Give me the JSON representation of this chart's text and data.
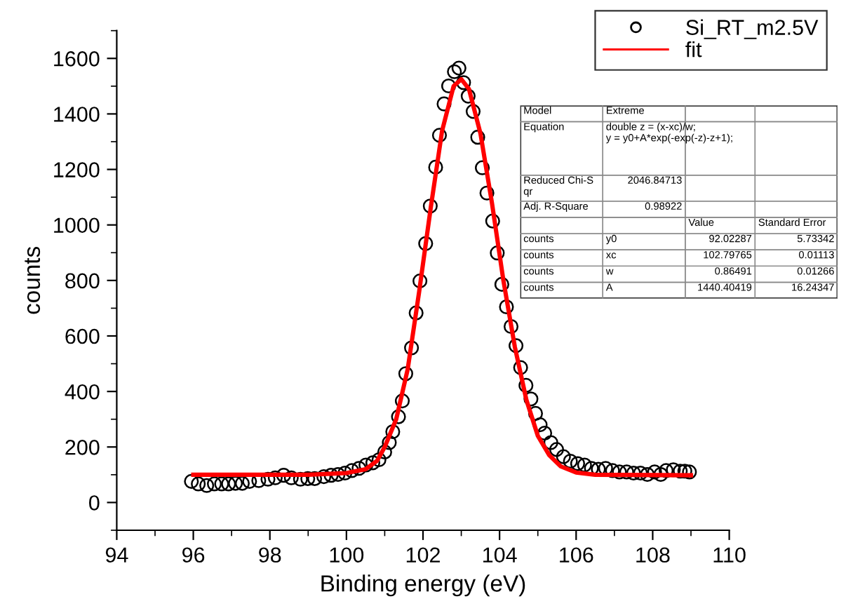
{
  "chart_data": {
    "type": "scatter",
    "xlabel": "Binding energy (eV)",
    "ylabel": "counts",
    "xlim": [
      94,
      110
    ],
    "xticks": [
      94,
      96,
      98,
      100,
      102,
      104,
      106,
      108,
      110
    ],
    "ylim": [
      -100,
      1700
    ],
    "yticks": [
      0,
      200,
      400,
      600,
      800,
      1000,
      1200,
      1400,
      1600
    ],
    "grid": false,
    "legend": "top right",
    "series": [
      {
        "name": "Si_RT_m2.5V",
        "marker": "circle",
        "color": "#000000",
        "x": [
          95.95,
          96.13,
          96.35,
          96.55,
          96.74,
          96.92,
          97.1,
          97.28,
          97.47,
          97.71,
          97.95,
          98.14,
          98.36,
          98.56,
          98.8,
          98.99,
          99.17,
          99.41,
          99.6,
          99.78,
          99.96,
          100.14,
          100.33,
          100.51,
          100.69,
          100.85,
          101.0,
          101.12,
          101.21,
          101.36,
          101.46,
          101.55,
          101.7,
          101.82,
          101.92,
          102.07,
          102.19,
          102.33,
          102.43,
          102.55,
          102.67,
          102.82,
          102.94,
          103.06,
          103.18,
          103.31,
          103.43,
          103.55,
          103.67,
          103.82,
          103.94,
          104.06,
          104.18,
          104.3,
          104.43,
          104.55,
          104.69,
          104.82,
          104.94,
          105.06,
          105.18,
          105.34,
          105.49,
          105.67,
          105.85,
          106.04,
          106.22,
          106.4,
          106.58,
          106.77,
          106.95,
          107.13,
          107.32,
          107.5,
          107.68,
          107.86,
          108.05,
          108.21,
          108.35,
          108.54,
          108.72,
          108.84,
          108.96
        ],
        "values": [
          76,
          67,
          61,
          67,
          67,
          67,
          69,
          69,
          76,
          79,
          84,
          89,
          98,
          89,
          84,
          86,
          86,
          93,
          98,
          101,
          106,
          115,
          123,
          135,
          143,
          154,
          182,
          216,
          255,
          309,
          366,
          464,
          557,
          683,
          798,
          933,
          1068,
          1208,
          1323,
          1436,
          1501,
          1552,
          1565,
          1513,
          1464,
          1409,
          1316,
          1206,
          1115,
          1014,
          899,
          786,
          705,
          634,
          565,
          486,
          422,
          373,
          321,
          280,
          250,
          216,
          191,
          165,
          149,
          140,
          135,
          123,
          120,
          123,
          115,
          110,
          110,
          106,
          106,
          101,
          110,
          101,
          115,
          118,
          113,
          113,
          110
        ]
      },
      {
        "name": "fit",
        "type": "line",
        "marker": "none",
        "line_style": "solid",
        "color": "#ff0000",
        "x": [
          96,
          99,
          100,
          100.5,
          100.8,
          101.0,
          101.3,
          101.6,
          101.9,
          102.2,
          102.5,
          102.8,
          103.0,
          103.2,
          103.5,
          103.8,
          104.1,
          104.4,
          104.7,
          105.0,
          105.3,
          105.6,
          106.0,
          106.5,
          109
        ],
        "values": [
          100,
          100,
          106,
          120,
          150,
          200,
          300,
          480,
          760,
          1060,
          1340,
          1500,
          1525,
          1490,
          1330,
          1080,
          800,
          560,
          370,
          240,
          170,
          130,
          108,
          100,
          98
        ]
      }
    ],
    "annotations": [
      "Model",
      "Extreme",
      "Equation",
      "double z = (x-xc)/w;\ny = y0+A*exp(-exp(-z)-z+1);",
      "Reduced Chi-S\nqr",
      "2046.84713",
      "Adj. R-Square",
      "0.98922",
      "Value",
      "Standard Error",
      "counts",
      "y0",
      "92.02287",
      "5.73342",
      "counts",
      "xc",
      "102.79765",
      "0.01113",
      "counts",
      "w",
      "0.86491",
      "0.01266",
      "counts",
      "A",
      "1440.40419",
      "16.24347"
    ]
  }
}
